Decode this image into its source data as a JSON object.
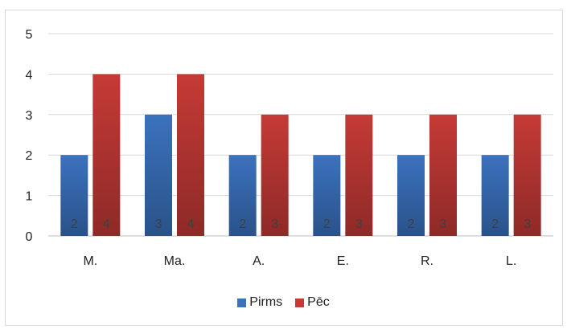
{
  "chart_data": {
    "type": "bar",
    "categories": [
      "M.",
      "Ma.",
      "A.",
      "E.",
      "R.",
      "L."
    ],
    "series": [
      {
        "name": "Pirms",
        "values": [
          2,
          3,
          2,
          2,
          2,
          2
        ],
        "color": "#3b72be"
      },
      {
        "name": "Pēc",
        "values": [
          4,
          4,
          3,
          3,
          3,
          3
        ],
        "color": "#c53a36"
      }
    ],
    "ylim": [
      0,
      5
    ],
    "yticks": [
      0,
      1,
      2,
      3,
      4,
      5
    ],
    "grid": true,
    "legend_position": "bottom",
    "data_labels_position": "bottom-inside"
  }
}
